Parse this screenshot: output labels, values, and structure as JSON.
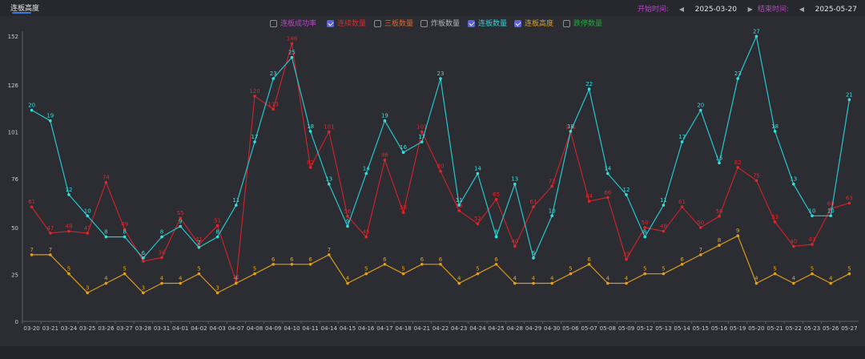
{
  "header": {
    "tab_label": "连板高度"
  },
  "start_date": {
    "label": "开始时间:",
    "value": "2025-03-20",
    "prev": "◀",
    "next": "▶"
  },
  "end_date": {
    "label": "结束时间:",
    "value": "2025-05-27",
    "prev": "◀",
    "next": "▶"
  },
  "legend": [
    {
      "label": "连板成功率",
      "checked": false,
      "color": "#c43fd1"
    },
    {
      "label": "连续数量",
      "checked": true,
      "color": "#e0262b"
    },
    {
      "label": "三板数量",
      "checked": false,
      "color": "#e0662b"
    },
    {
      "label": "炸板数量",
      "checked": false,
      "color": "#b0b4bd"
    },
    {
      "label": "连板数量",
      "checked": true,
      "color": "#2ed3d3"
    },
    {
      "label": "连板高度",
      "checked": true,
      "color": "#e2a01e"
    },
    {
      "label": "跌停数量",
      "checked": false,
      "color": "#23a83a"
    }
  ],
  "chart_data": {
    "type": "line",
    "y_ticks": [
      0,
      25,
      50,
      76,
      101,
      126,
      152
    ],
    "ylim": [
      0,
      152
    ],
    "categories": [
      "03-20",
      "03-21",
      "03-24",
      "03-25",
      "03-26",
      "03-27",
      "03-28",
      "03-31",
      "04-01",
      "04-02",
      "04-03",
      "04-07",
      "04-08",
      "04-09",
      "04-10",
      "04-11",
      "04-14",
      "04-15",
      "04-16",
      "04-17",
      "04-18",
      "04-21",
      "04-22",
      "04-23",
      "04-24",
      "04-25",
      "04-28",
      "04-29",
      "04-30",
      "05-06",
      "05-07",
      "05-08",
      "05-09",
      "05-12",
      "05-13",
      "05-14",
      "05-15",
      "05-16",
      "05-19",
      "05-20",
      "05-21",
      "05-22",
      "05-23",
      "05-26",
      "05-27"
    ],
    "series": [
      {
        "name": "连续数量",
        "color": "#c8232a",
        "label_color": "#e0262b",
        "scale": 1,
        "values": [
          61,
          47,
          48,
          47,
          74,
          49,
          32,
          34,
          55,
          41,
          51,
          21,
          120,
          113,
          148,
          82,
          101,
          56,
          45,
          86,
          58,
          101,
          80,
          59,
          52,
          65,
          40,
          61,
          72,
          101,
          64,
          66,
          33,
          50,
          48,
          61,
          50,
          56,
          82,
          75,
          53,
          40,
          41,
          60,
          63
        ]
      },
      {
        "name": "连板数量",
        "color": "#27c6cc",
        "label_color": "#37dede",
        "scale": 5.625,
        "values": [
          20,
          19,
          12,
          10,
          8,
          8,
          6,
          8,
          9,
          7,
          8,
          11,
          17,
          23,
          25,
          18,
          13,
          9,
          14,
          19,
          16,
          17,
          23,
          11,
          14,
          8,
          13,
          6,
          10,
          18,
          22,
          14,
          12,
          8,
          11,
          17,
          20,
          15,
          23,
          27,
          18,
          13,
          10,
          10,
          21
        ]
      },
      {
        "name": "连板高度",
        "color": "#d99a1c",
        "label_color": "#e2a01e",
        "scale": 5.0667,
        "values": [
          7,
          7,
          5,
          3,
          4,
          5,
          3,
          4,
          4,
          5,
          3,
          4,
          5,
          6,
          6,
          6,
          7,
          4,
          5,
          6,
          5,
          6,
          6,
          4,
          5,
          6,
          4,
          4,
          4,
          5,
          6,
          4,
          4,
          5,
          5,
          6,
          7,
          8,
          9,
          4,
          5,
          4,
          5,
          4,
          5
        ]
      }
    ]
  }
}
